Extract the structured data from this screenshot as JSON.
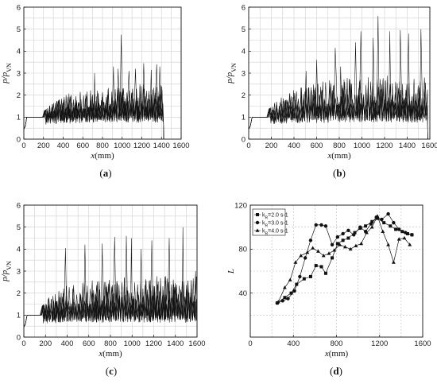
{
  "chart_data": [
    {
      "panel": "(a)",
      "type": "line",
      "xlabel": "x(mm)",
      "ylabel": "p/pVN",
      "xlim": [
        0,
        1600
      ],
      "ylim": [
        0,
        6
      ],
      "xticks": [
        0,
        200,
        400,
        600,
        800,
        1000,
        1200,
        1400,
        1600
      ],
      "yticks": [
        0,
        1,
        2,
        3,
        4,
        5,
        6
      ],
      "grid": true,
      "signal": {
        "ramp_end": 30,
        "plateau": 1.0,
        "oscillation_start": 210,
        "baseline": [
          [
            210,
            1.0
          ],
          [
            400,
            1.05
          ],
          [
            800,
            1.1
          ],
          [
            1200,
            1.1
          ],
          [
            1420,
            1.1
          ]
        ],
        "amplitude": [
          [
            210,
            0.3
          ],
          [
            400,
            0.9
          ],
          [
            800,
            1.1
          ],
          [
            1200,
            1.3
          ],
          [
            1420,
            1.3
          ]
        ],
        "traces": 5,
        "end_x": 1420,
        "drop_at_end": true,
        "peaks": [
          [
            720,
            3.0
          ],
          [
            900,
            3.3
          ],
          [
            960,
            3.2
          ],
          [
            990,
            4.75
          ],
          [
            1070,
            3.1
          ],
          [
            1130,
            3.2
          ],
          [
            1210,
            3.45
          ],
          [
            1300,
            3.15
          ],
          [
            1350,
            3.4
          ],
          [
            1390,
            3.3
          ]
        ]
      }
    },
    {
      "panel": "(b)",
      "type": "line",
      "xlabel": "x(mm)",
      "ylabel": "p/pVN",
      "xlim": [
        0,
        1600
      ],
      "ylim": [
        0,
        6
      ],
      "xticks": [
        0,
        200,
        400,
        600,
        800,
        1000,
        1200,
        1400,
        1600
      ],
      "yticks": [
        0,
        1,
        2,
        3,
        4,
        5,
        6
      ],
      "grid": true,
      "signal": {
        "ramp_end": 30,
        "plateau": 1.0,
        "oscillation_start": 180,
        "baseline": [
          [
            180,
            1.0
          ],
          [
            400,
            1.05
          ],
          [
            800,
            1.1
          ],
          [
            1200,
            1.1
          ],
          [
            1580,
            1.1
          ]
        ],
        "amplitude": [
          [
            180,
            0.4
          ],
          [
            400,
            1.2
          ],
          [
            800,
            1.6
          ],
          [
            1200,
            1.7
          ],
          [
            1580,
            1.6
          ]
        ],
        "traces": 5,
        "end_x": 1580,
        "drop_at_end": true,
        "peaks": [
          [
            500,
            3.1
          ],
          [
            600,
            3.6
          ],
          [
            760,
            4.15
          ],
          [
            820,
            3.3
          ],
          [
            940,
            4.4
          ],
          [
            1000,
            4.9
          ],
          [
            1090,
            4.6
          ],
          [
            1150,
            5.6
          ],
          [
            1250,
            4.9
          ],
          [
            1340,
            4.95
          ],
          [
            1410,
            4.8
          ],
          [
            1530,
            5.0
          ]
        ]
      }
    },
    {
      "panel": "(c)",
      "type": "line",
      "xlabel": "x(mm)",
      "ylabel": "p/pVN",
      "xlim": [
        0,
        1600
      ],
      "ylim": [
        0,
        6
      ],
      "xticks": [
        0,
        200,
        400,
        600,
        800,
        1000,
        1200,
        1400,
        1600
      ],
      "yticks": [
        0,
        1,
        2,
        3,
        4,
        5,
        6
      ],
      "grid": true,
      "signal": {
        "ramp_end": 30,
        "plateau": 1.0,
        "oscillation_start": 170,
        "baseline": [
          [
            170,
            0.95
          ],
          [
            400,
            1.0
          ],
          [
            800,
            1.0
          ],
          [
            1200,
            1.0
          ],
          [
            1600,
            1.0
          ]
        ],
        "amplitude": [
          [
            170,
            0.5
          ],
          [
            400,
            1.4
          ],
          [
            800,
            1.6
          ],
          [
            1200,
            1.7
          ],
          [
            1600,
            1.7
          ]
        ],
        "traces": 5,
        "end_x": 1600,
        "drop_at_end": false,
        "peaks": [
          [
            380,
            4.05
          ],
          [
            560,
            4.2
          ],
          [
            720,
            4.25
          ],
          [
            840,
            4.55
          ],
          [
            950,
            4.6
          ],
          [
            1000,
            4.5
          ],
          [
            1090,
            4.0
          ],
          [
            1180,
            4.4
          ],
          [
            1340,
            4.5
          ],
          [
            1470,
            5.0
          ],
          [
            1590,
            3.0
          ]
        ]
      }
    },
    {
      "panel": "(d)",
      "type": "line",
      "xlabel": "x(mm)",
      "ylabel": "L",
      "xlim": [
        0,
        1600
      ],
      "ylim": [
        0,
        120
      ],
      "xticks": [
        0,
        400,
        800,
        1200,
        1600
      ],
      "yticks": [
        40,
        80,
        120
      ],
      "grid": true,
      "legend_position": "top-left",
      "series": [
        {
          "name": "kR=2.0 s-1",
          "marker": "square",
          "x": [
            250,
            320,
            380,
            430,
            500,
            560,
            610,
            660,
            700,
            760,
            810,
            860,
            910,
            970,
            1020,
            1070,
            1130,
            1180,
            1240,
            1300,
            1350,
            1410,
            1460,
            1500
          ],
          "y": [
            31,
            36,
            40,
            48,
            53,
            55,
            65,
            64,
            58,
            72,
            85,
            88,
            90,
            95,
            99,
            101,
            105,
            108,
            104,
            101,
            98,
            96,
            94,
            93
          ]
        },
        {
          "name": "kR=3.0 s-1",
          "marker": "circle",
          "x": [
            250,
            300,
            350,
            410,
            460,
            510,
            560,
            610,
            660,
            700,
            760,
            810,
            860,
            910,
            960,
            1020,
            1070,
            1120,
            1170,
            1220,
            1280,
            1330,
            1380,
            1440,
            1500
          ],
          "y": [
            31,
            33,
            35,
            42,
            55,
            72,
            88,
            102,
            102,
            101,
            84,
            91,
            94,
            97,
            93,
            100,
            96,
            103,
            109,
            107,
            112,
            104,
            98,
            95,
            93
          ]
        },
        {
          "name": "kR=4.0 s-1",
          "marker": "triangle",
          "x": [
            260,
            320,
            370,
            420,
            470,
            530,
            580,
            630,
            680,
            730,
            780,
            830,
            880,
            930,
            980,
            1030,
            1080,
            1130,
            1180,
            1230,
            1280,
            1330,
            1380,
            1430,
            1480
          ],
          "y": [
            32,
            45,
            52,
            68,
            74,
            77,
            81,
            78,
            74,
            76,
            79,
            84,
            82,
            80,
            83,
            85,
            95,
            100,
            110,
            96,
            84,
            68,
            89,
            90,
            84
          ]
        }
      ]
    }
  ]
}
